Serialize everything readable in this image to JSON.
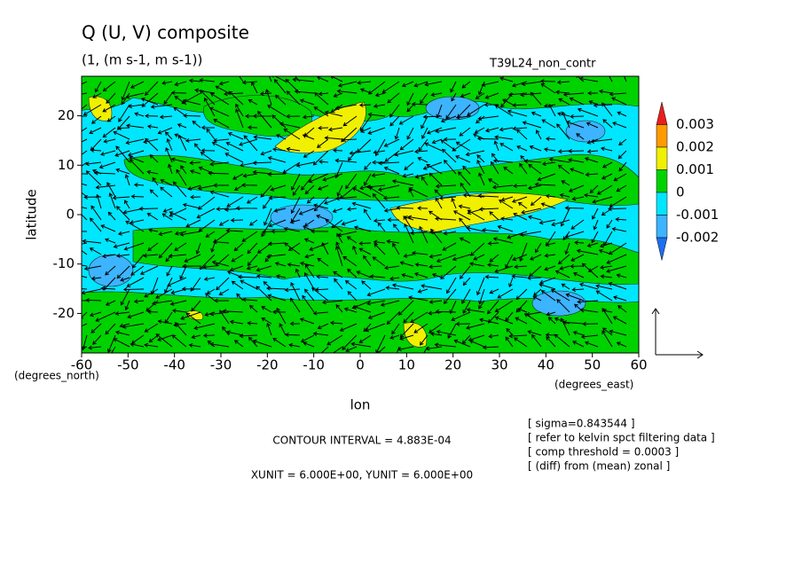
{
  "chart_data": {
    "type": "contour-vector",
    "title": "Q (U, V) composite",
    "subtitle": "(1, (m s-1, m s-1))",
    "tag": "T39L24_non_contr",
    "x_label": "lon",
    "y_label": "latitude",
    "y_unit": "(degrees_north)",
    "x_unit": "(degrees_east)",
    "xlim": [
      -60,
      60
    ],
    "xticks": [
      -60,
      -50,
      -40,
      -30,
      -20,
      -10,
      0,
      10,
      20,
      30,
      40,
      50,
      60
    ],
    "ylim": [
      -28,
      28
    ],
    "yticks": [
      20,
      10,
      0,
      -10,
      -20
    ],
    "colorbar": {
      "levels": [
        -0.002,
        -0.001,
        0,
        0.001,
        0.002,
        0.003
      ],
      "colors": [
        "#1e6ef0",
        "#3cb4ff",
        "#00e6ff",
        "#00d200",
        "#f0f000",
        "#ff9b00",
        "#eb1e1e"
      ]
    },
    "contour_interval": "CONTOUR INTERVAL = 4.883E-04",
    "units_note": "XUNIT = 6.000E+00, YUNIT = 6.000E+00",
    "notes": [
      "[ sigma=0.843544 ]",
      "[ refer to kelvin spct filtering data ]",
      "[ comp threshold = 0.0003 ]",
      "[ (diff) from (mean) zonal ]"
    ]
  }
}
